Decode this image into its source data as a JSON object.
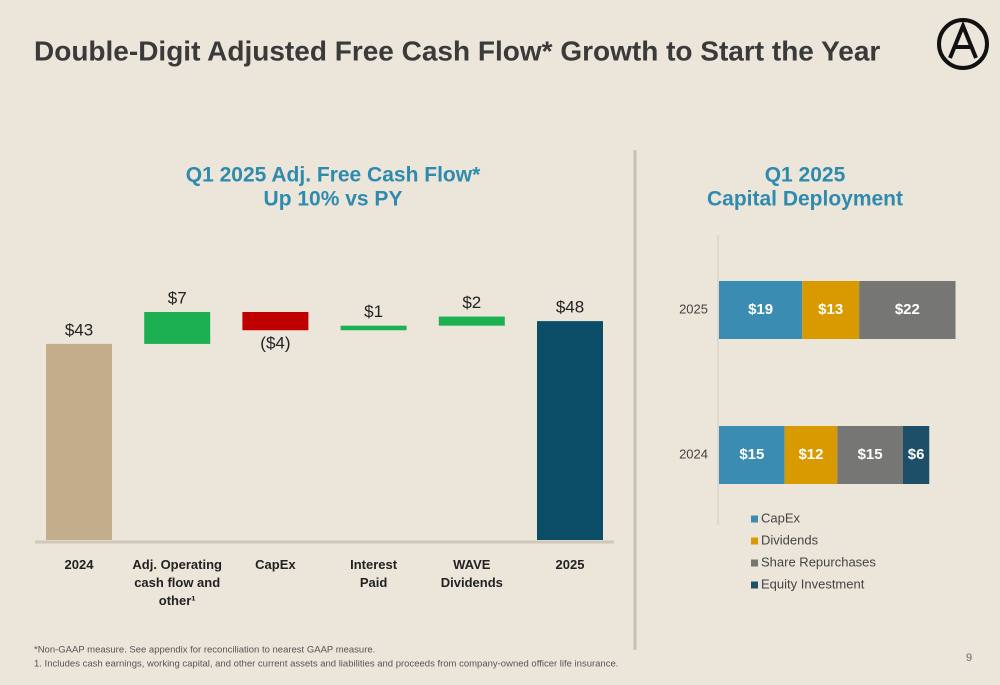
{
  "slide": {
    "title": "Double-Digit Adjusted Free Cash Flow* Growth to Start the Year",
    "footnotes": [
      "*Non-GAAP measure. See appendix for reconciliation to nearest GAAP measure.",
      "1.  Includes cash earnings, working capital, and other current assets and liabilities and proceeds from company-owned officer life insurance."
    ],
    "page": "9"
  },
  "chart_data": [
    {
      "type": "waterfall",
      "title": [
        "Q1 2025 Adj. Free Cash Flow*",
        "Up 10% vs PY"
      ],
      "categories": [
        "2024",
        "Adj. Operating\ncash flow and\nother¹",
        "CapEx",
        "Interest\nPaid",
        "WAVE\nDividends",
        "2025"
      ],
      "values": [
        43,
        7,
        -4,
        1,
        2,
        48
      ],
      "value_labels": [
        "$43",
        "$7",
        "($4)",
        "$1",
        "$2",
        "$48"
      ],
      "colors": [
        "#c4ad8a",
        "#1db052",
        "#c00000",
        "#1db052",
        "#1db052",
        "#0b4d66"
      ]
    },
    {
      "type": "stacked-barh",
      "title": [
        "Q1 2025",
        "Capital Deployment"
      ],
      "categories": [
        "2025",
        "2024"
      ],
      "series": [
        {
          "name": "CapEx",
          "color": "#3a8db0",
          "values": [
            19,
            15
          ],
          "value_labels": [
            "$19",
            "$15"
          ]
        },
        {
          "name": "Dividends",
          "color": "#d99a00",
          "values": [
            13,
            12
          ],
          "value_labels": [
            "$13",
            "$12"
          ]
        },
        {
          "name": "Share Repurchases",
          "color": "#767674",
          "values": [
            22,
            15
          ],
          "value_labels": [
            "$22",
            "$15"
          ]
        },
        {
          "name": "Equity Investment",
          "color": "#1d5068",
          "values": [
            null,
            6
          ],
          "value_labels": [
            null,
            "$6"
          ]
        }
      ],
      "legend": "bottom-left"
    }
  ]
}
